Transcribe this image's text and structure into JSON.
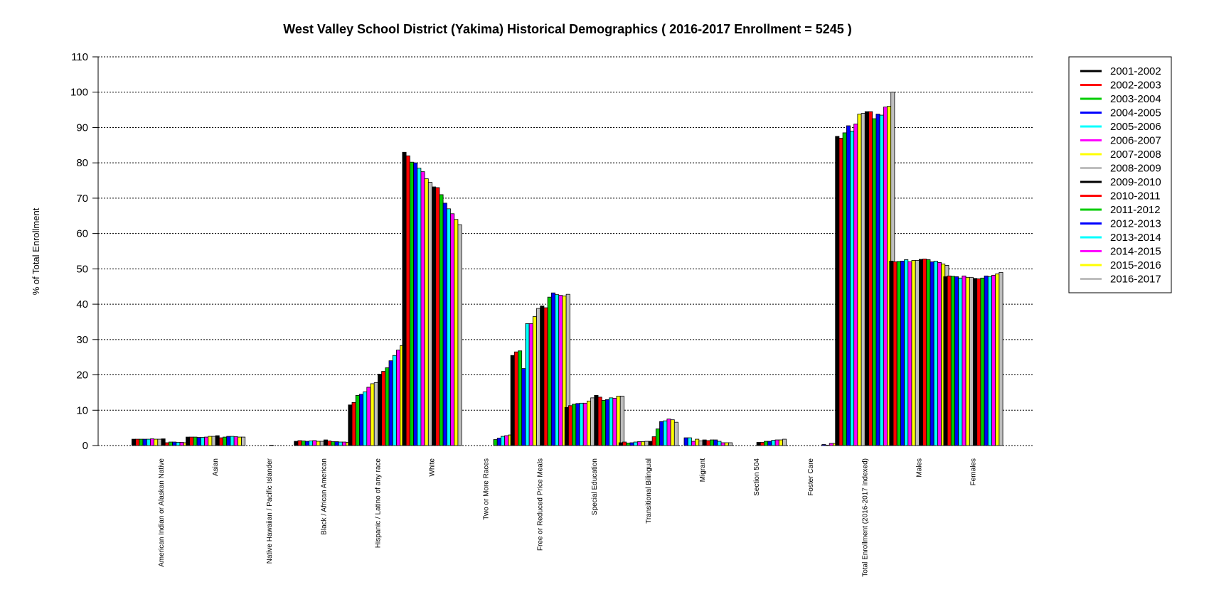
{
  "chart_data": {
    "type": "bar",
    "title": "West Valley School District (Yakima) Historical Demographics  ( 2016-2017 Enrollment =  5245 )",
    "xlabel": "",
    "ylabel": "% of Total Enrollment",
    "ylim": [
      0,
      110
    ],
    "yticks": [
      0,
      10,
      20,
      30,
      40,
      50,
      60,
      70,
      80,
      90,
      100,
      110
    ],
    "grid": "horizontal-dotted",
    "legend_position": "right",
    "categories": [
      "American Indian or Alaskan Native",
      "Asian",
      "Native Hawaiian / Pacific Islander",
      "Black / African American",
      "Hispanic / Latino of any race",
      "White",
      "Two or More Races",
      "Free or Reduced Price Meals",
      "Special Education",
      "Transitional Bilingual",
      "Migrant",
      "Section 504",
      "Foster Care",
      "Total Enrollment (2016-2017 indexed)",
      "Males",
      "Females"
    ],
    "series": [
      {
        "name": "2001-2002",
        "color": "#000000",
        "values": [
          1.8,
          2.4,
          0.0,
          1.2,
          11.5,
          83.0,
          null,
          25.5,
          10.8,
          0.8,
          null,
          null,
          null,
          87.5,
          52.2,
          47.8
        ]
      },
      {
        "name": "2002-2003",
        "color": "#ff0000",
        "values": [
          1.8,
          2.4,
          0.0,
          1.4,
          12.2,
          82.0,
          null,
          26.5,
          11.3,
          1.0,
          null,
          null,
          null,
          87.0,
          52.0,
          48.0
        ]
      },
      {
        "name": "2003-2004",
        "color": "#00cc00",
        "values": [
          1.8,
          2.4,
          0.0,
          1.3,
          14.2,
          80.2,
          null,
          26.8,
          11.7,
          0.7,
          null,
          null,
          null,
          88.5,
          52.1,
          47.9
        ]
      },
      {
        "name": "2004-2005",
        "color": "#0000ff",
        "values": [
          1.8,
          2.3,
          0.0,
          1.2,
          14.5,
          80.0,
          null,
          21.8,
          11.9,
          0.8,
          2.2,
          null,
          null,
          90.5,
          52.2,
          47.8
        ]
      },
      {
        "name": "2005-2006",
        "color": "#00ffff",
        "values": [
          1.8,
          2.3,
          0.0,
          1.3,
          15.2,
          78.5,
          null,
          34.5,
          12.0,
          1.0,
          2.2,
          null,
          null,
          89.0,
          52.6,
          47.4
        ]
      },
      {
        "name": "2006-2007",
        "color": "#ff00ff",
        "values": [
          1.9,
          2.4,
          0.0,
          1.4,
          16.5,
          77.5,
          null,
          34.5,
          12.0,
          1.1,
          1.2,
          null,
          null,
          91.0,
          52.0,
          48.0
        ]
      },
      {
        "name": "2007-2008",
        "color": "#ffff00",
        "values": [
          1.8,
          2.6,
          0.0,
          1.2,
          17.5,
          75.5,
          null,
          36.5,
          12.6,
          1.1,
          1.8,
          null,
          null,
          93.8,
          52.4,
          47.6
        ]
      },
      {
        "name": "2008-2009",
        "color": "#bebebe",
        "values": [
          1.8,
          2.6,
          0.0,
          1.2,
          17.8,
          74.5,
          null,
          38.8,
          13.5,
          1.2,
          1.3,
          null,
          null,
          94.0,
          52.4,
          47.6
        ]
      },
      {
        "name": "2009-2010",
        "color": "#000000",
        "values": [
          1.9,
          2.8,
          0.1,
          1.6,
          20.2,
          73.2,
          null,
          39.5,
          14.2,
          1.2,
          1.6,
          0.9,
          null,
          94.5,
          52.7,
          47.3
        ]
      },
      {
        "name": "2010-2011",
        "color": "#ff0000",
        "values": [
          0.8,
          2.2,
          0.0,
          1.3,
          21.0,
          73.0,
          null,
          39.0,
          13.7,
          2.5,
          1.4,
          0.9,
          null,
          94.5,
          52.8,
          47.2
        ]
      },
      {
        "name": "2011-2012",
        "color": "#00cc00",
        "values": [
          1.0,
          2.4,
          0.0,
          1.1,
          22.0,
          71.0,
          1.7,
          42.0,
          12.8,
          4.7,
          1.6,
          1.2,
          null,
          92.5,
          52.6,
          47.4
        ]
      },
      {
        "name": "2012-2013",
        "color": "#0000ff",
        "values": [
          1.0,
          2.6,
          0.0,
          1.1,
          24.0,
          68.6,
          2.1,
          43.2,
          13.0,
          6.8,
          1.6,
          1.2,
          0.3,
          93.8,
          52.0,
          48.0
        ]
      },
      {
        "name": "2013-2014",
        "color": "#00ffff",
        "values": [
          0.9,
          2.6,
          0.0,
          1.0,
          25.5,
          67.0,
          2.6,
          42.7,
          13.5,
          7.0,
          1.2,
          1.5,
          0.1,
          93.5,
          52.2,
          47.8
        ]
      },
      {
        "name": "2014-2015",
        "color": "#ff00ff",
        "values": [
          0.9,
          2.5,
          0.0,
          1.0,
          27.0,
          65.6,
          2.8,
          42.5,
          13.4,
          7.5,
          0.8,
          1.6,
          0.6,
          95.8,
          51.8,
          48.2
        ]
      },
      {
        "name": "2015-2016",
        "color": "#ffff00",
        "values": [
          0.8,
          2.4,
          0.0,
          0.9,
          28.3,
          64.0,
          3.0,
          42.3,
          14.0,
          7.3,
          0.8,
          1.6,
          0.6,
          96.0,
          51.4,
          48.6
        ]
      },
      {
        "name": "2016-2017",
        "color": "#bebebe",
        "values": [
          0.8,
          2.4,
          0.0,
          0.7,
          29.5,
          62.5,
          3.4,
          42.8,
          14.0,
          6.6,
          0.8,
          1.8,
          0.6,
          100.0,
          51.0,
          49.0
        ]
      }
    ]
  }
}
